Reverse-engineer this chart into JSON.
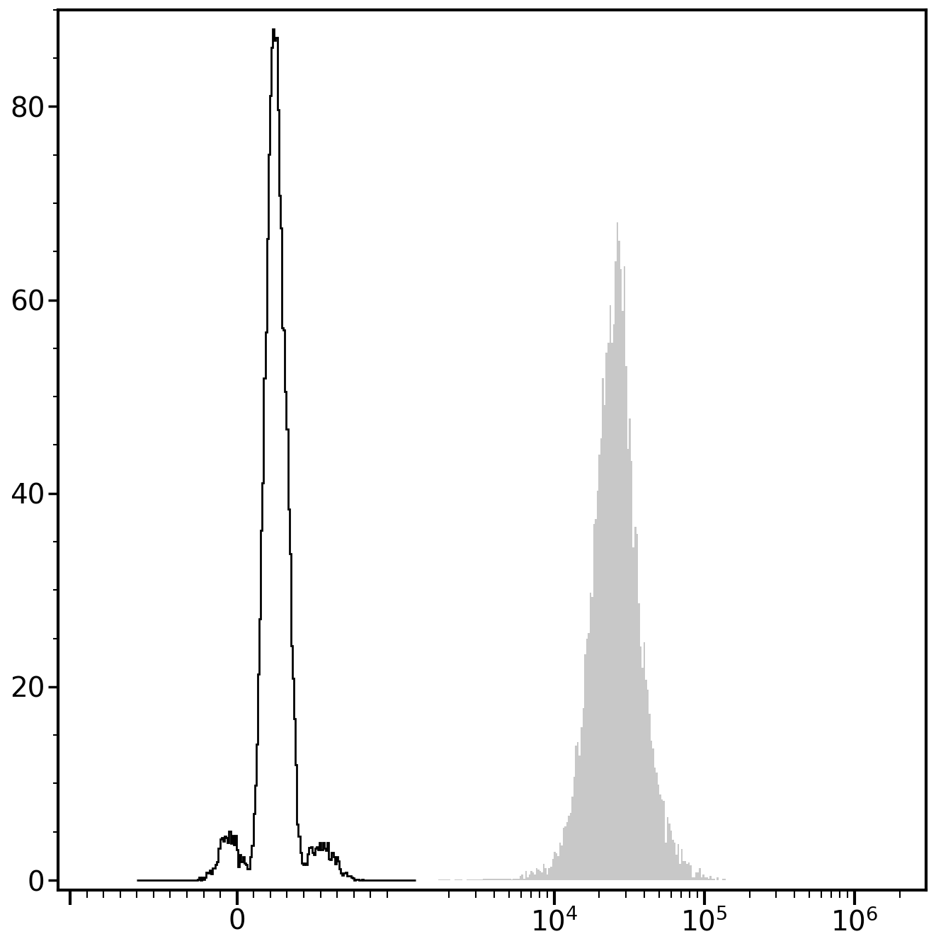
{
  "background_color": "#ffffff",
  "ylim": [
    -1,
    90
  ],
  "yticks": [
    0,
    20,
    40,
    60,
    80
  ],
  "black_hist_peak_value": 88,
  "gray_hist_peak_value": 68,
  "linewidth_black": 2.0,
  "linewidth_gray": 1.5,
  "tick_labelsize": 28,
  "spine_linewidth": 3.0,
  "figsize": [
    13.22,
    13.36
  ],
  "dpi": 100,
  "seed_black": 42,
  "seed_gray": 99,
  "gray_fill_color": "#c8c8c8",
  "gray_edge_color": "#aaaaaa"
}
